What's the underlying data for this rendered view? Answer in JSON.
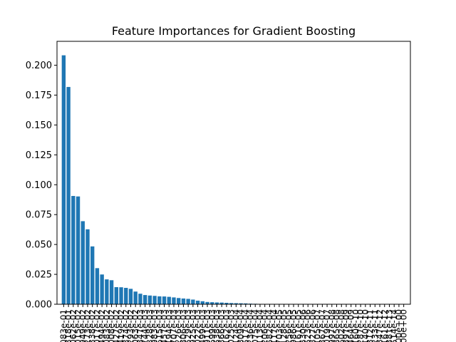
{
  "chart_data": {
    "type": "bar",
    "title": "Feature Importances for Gradient Boosting",
    "xlabel": "",
    "ylabel": "",
    "ylim": [
      0,
      0.22
    ],
    "yticks": [
      "0.000",
      "0.025",
      "0.050",
      "0.075",
      "0.100",
      "0.125",
      "0.150",
      "0.175",
      "0.200"
    ],
    "ytick_values": [
      0,
      0.025,
      0.05,
      0.075,
      0.1,
      0.125,
      0.15,
      0.175,
      0.2
    ],
    "bar_color": "#1f77b4",
    "categories": [
      "2.083e-01",
      "1.818e-01",
      "9.062e-02",
      "9.015e-02",
      "6.949e-02",
      "6.273e-02",
      "4.838e-02",
      "3.017e-02",
      "2.494e-02",
      "2.083e-02",
      "2.008e-02",
      "1.427e-02",
      "1.419e-02",
      "1.374e-02",
      "1.293e-02",
      "1.063e-02",
      "8.847e-03",
      "7.744e-03",
      "7.328e-03",
      "6.983e-03",
      "6.615e-03",
      "6.457e-03",
      "6.194e-03",
      "5.707e-03",
      "5.226e-03",
      "4.806e-03",
      "4.529e-03",
      "3.925e-03",
      "3.022e-03",
      "2.499e-03",
      "1.911e-03",
      "1.699e-03",
      "1.538e-03",
      "1.366e-03",
      "1.162e-03",
      "1.025e-03",
      "9.124e-04",
      "7.809e-04",
      "6.517e-04",
      "5.236e-04",
      "4.075e-04",
      "3.113e-04",
      "2.206e-04",
      "1.582e-04",
      "1.117e-04",
      "7.703e-05",
      "5.128e-05",
      "3.256e-05",
      "1.986e-05",
      "1.161e-05",
      "6.530e-06",
      "3.523e-06",
      "1.827e-06",
      "9.105e-07",
      "4.367e-07",
      "2.019e-07",
      "8.997e-08",
      "3.865e-08",
      "1.602e-08",
      "6.397e-09",
      "2.464e-09",
      "9.160e-10",
      "3.287e-10",
      "1.140e-10",
      "3.812e-11",
      "1.233e-11",
      "3.847e-12",
      "1.161e-12",
      "3.381e-13",
      "9.514e-14",
      "0.000e+00",
      "0.000e+00"
    ],
    "values": [
      0.2083,
      0.1818,
      0.0906,
      0.0902,
      0.0695,
      0.0627,
      0.0484,
      0.0302,
      0.0249,
      0.0208,
      0.0201,
      0.0143,
      0.0142,
      0.0137,
      0.0129,
      0.0106,
      0.0088,
      0.0077,
      0.0073,
      0.007,
      0.0066,
      0.0065,
      0.0062,
      0.0057,
      0.0052,
      0.0048,
      0.0045,
      0.0039,
      0.003,
      0.0025,
      0.0019,
      0.0017,
      0.0015,
      0.0014,
      0.0012,
      0.001,
      0.0009,
      0.0008,
      0.0007,
      0.0005,
      0.0004,
      0.0003,
      0.0002,
      0.00016,
      0.00011,
      8e-05,
      5e-05,
      3e-05,
      2e-05,
      1e-05,
      7e-06,
      4e-06,
      2e-06,
      1e-06,
      4e-07,
      2e-07,
      1e-07,
      4e-08,
      2e-08,
      6e-09,
      2e-09,
      9e-10,
      3e-10,
      1e-10,
      4e-11,
      1e-11,
      4e-12,
      1e-12,
      3e-13,
      1e-13,
      0,
      0
    ]
  }
}
